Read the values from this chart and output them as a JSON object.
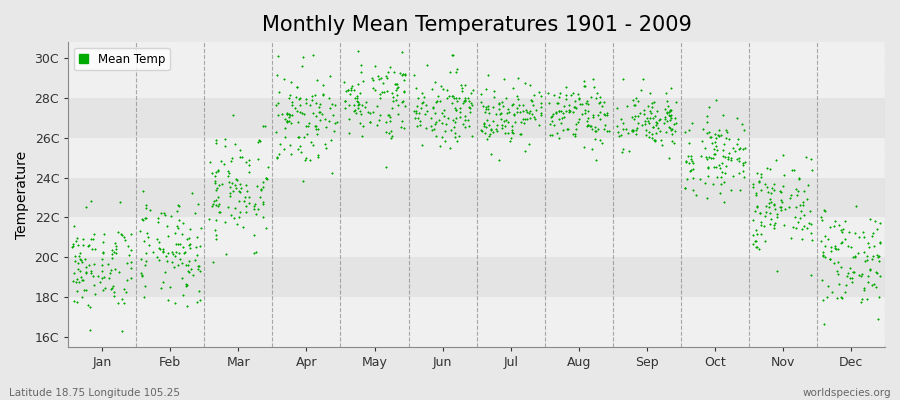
{
  "title": "Monthly Mean Temperatures 1901 - 2009",
  "ylabel": "Temperature",
  "subtitle": "Latitude 18.75 Longitude 105.25",
  "watermark": "worldspecies.org",
  "legend_label": "Mean Temp",
  "dot_color": "#00aa00",
  "dot_size": 3,
  "ytick_labels": [
    "16C",
    "18C",
    "20C",
    "22C",
    "24C",
    "26C",
    "28C",
    "30C"
  ],
  "ytick_values": [
    16,
    18,
    20,
    22,
    24,
    26,
    28,
    30
  ],
  "ylim": [
    15.5,
    30.8
  ],
  "months": [
    "Jan",
    "Feb",
    "Mar",
    "Apr",
    "May",
    "Jun",
    "Jul",
    "Aug",
    "Sep",
    "Oct",
    "Nov",
    "Dec"
  ],
  "month_means": [
    19.5,
    20.2,
    23.5,
    27.0,
    28.0,
    27.5,
    27.2,
    27.1,
    26.8,
    25.2,
    22.5,
    20.0
  ],
  "month_stds": [
    1.2,
    1.3,
    1.5,
    1.2,
    1.0,
    0.9,
    0.8,
    0.8,
    0.8,
    1.0,
    1.2,
    1.3
  ],
  "n_years": 109,
  "bg_stripe_light": "#f0f0f0",
  "bg_stripe_dark": "#e4e4e4",
  "fig_bg": "#e8e8e8",
  "grid_color": "#888888",
  "title_fontsize": 15,
  "axis_fontsize": 10,
  "tick_fontsize": 9,
  "seed": 42
}
